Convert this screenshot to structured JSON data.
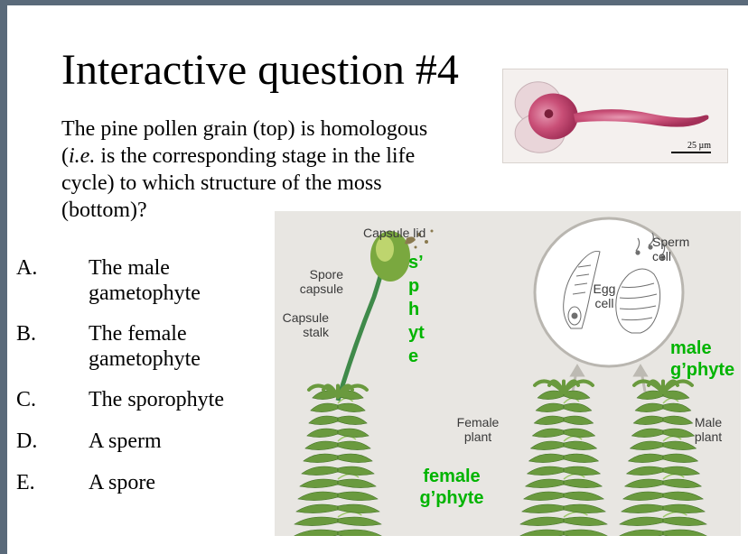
{
  "title": "Interactive question #4",
  "question_html": "The pine pollen grain (top) is homologous (<i>i.e.</i> is the corresponding stage in the life cycle) to which structure of the moss (bottom)?",
  "options": [
    {
      "letter": "A.",
      "text": "The male gametophyte"
    },
    {
      "letter": "B.",
      "text": "The female gametophyte"
    },
    {
      "letter": "C.",
      "text": "The sporophyte"
    },
    {
      "letter": "D.",
      "text": "A sperm"
    },
    {
      "letter": "E.",
      "text": "A spore"
    }
  ],
  "pollen": {
    "scale_text": "25 µm",
    "body_color": "#c94f77",
    "body_color_dark": "#a33058",
    "sac_color": "#e9d5d9",
    "sac_edge": "#c7b1b6",
    "bg": "#f4f0ee"
  },
  "moss_diagram": {
    "bg": "#e8e6e2",
    "leaf_fill": "#6a9a3e",
    "leaf_dark": "#3f6e22",
    "leaf_light": "#9ec96b",
    "stalk_color": "#3f8a4a",
    "capsule_fill": "#7aa83f",
    "capsule_highlight": "#cfe07a",
    "circle_stroke": "#b9b6b0",
    "circle_fill": "#ffffff",
    "cell_stroke": "#6f6f6f",
    "arrow_color": "#bdbab3",
    "labels": {
      "capsule_lid": "Capsule lid",
      "spore_capsule": "Spore capsule",
      "capsule_stalk": "Capsule stalk",
      "female_plant": "Female plant",
      "male_plant": "Male plant",
      "egg_cell": "Egg cell",
      "sperm_cell": "Sperm cell"
    },
    "green_labels": {
      "sphyte": "s’phyte",
      "female_gphyte": "female g’phyte",
      "male_gphyte": "male g’phyte"
    },
    "green_color": "#00b400"
  },
  "style": {
    "title_fontsize": 48,
    "body_fontsize": 24,
    "diag_label_fontsize": 14,
    "green_fontsize_main": 20,
    "green_fontsize_side": 20,
    "border_color": "#5a6a7a"
  }
}
